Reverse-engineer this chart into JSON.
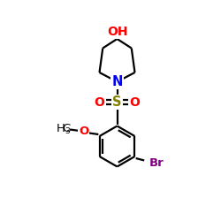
{
  "background": "#ffffff",
  "bond_color": "#000000",
  "bond_lw": 1.6,
  "font_size": 9.5,
  "OH_color": "#ff0000",
  "N_color": "#0000ff",
  "S_color": "#808000",
  "O_color": "#ff0000",
  "Br_color": "#800080",
  "OMe_O_color": "#ff0000",
  "black": "#000000",
  "xlim": [
    0,
    10
  ],
  "ylim": [
    0,
    10
  ]
}
